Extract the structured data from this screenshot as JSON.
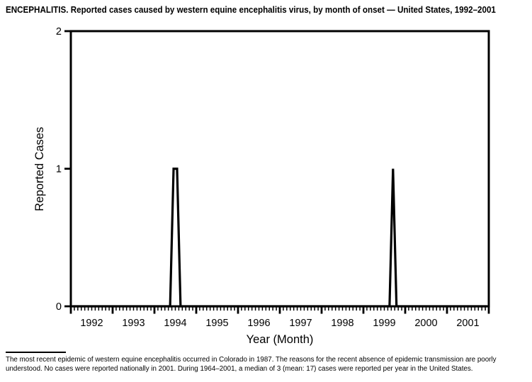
{
  "figure": {
    "title": "ENCEPHALITIS. Reported cases caused by western equine encephalitis virus, by month of onset — United States, 1992–2001",
    "footnote": "The most recent epidemic of western equine encephalitis occurred in Colorado in 1987. The reasons for the recent absence of epidemic transmission are poorly understood. No cases were reported nationally in 2001. During 1964–2001, a median of 3 (mean: 17) cases were reported per year in the United States."
  },
  "chart_data": {
    "type": "line",
    "title": "ENCEPHALITIS. Reported cases caused by western equine encephalitis virus, by month of onset — United States, 1992–2001",
    "xlabel": "Year (Month)",
    "ylabel": "Reported Cases",
    "x_unit": "month",
    "x_years": [
      1992,
      1993,
      1994,
      1995,
      1996,
      1997,
      1998,
      1999,
      2000,
      2001
    ],
    "x_tick_labels": [
      "1992",
      "1993",
      "1994",
      "1995",
      "1996",
      "1997",
      "1998",
      "1999",
      "2000",
      "2001"
    ],
    "months_per_year": 12,
    "ylim": [
      0,
      2
    ],
    "y_ticks": [
      0,
      1,
      2
    ],
    "y_tick_labels": [
      "0",
      "1",
      "2"
    ],
    "baseline_value": 0,
    "nonzero_points": [
      {
        "year": 1994,
        "month": "Jun",
        "month_index": 5,
        "cases": 1
      },
      {
        "year": 1994,
        "month": "Jul",
        "month_index": 6,
        "cases": 1
      },
      {
        "year": 1999,
        "month": "Sep",
        "month_index": 8,
        "cases": 1
      }
    ],
    "grid": "off",
    "legend": "none",
    "line_color": "#000000",
    "axis_color": "#000000",
    "background": "#ffffff"
  }
}
